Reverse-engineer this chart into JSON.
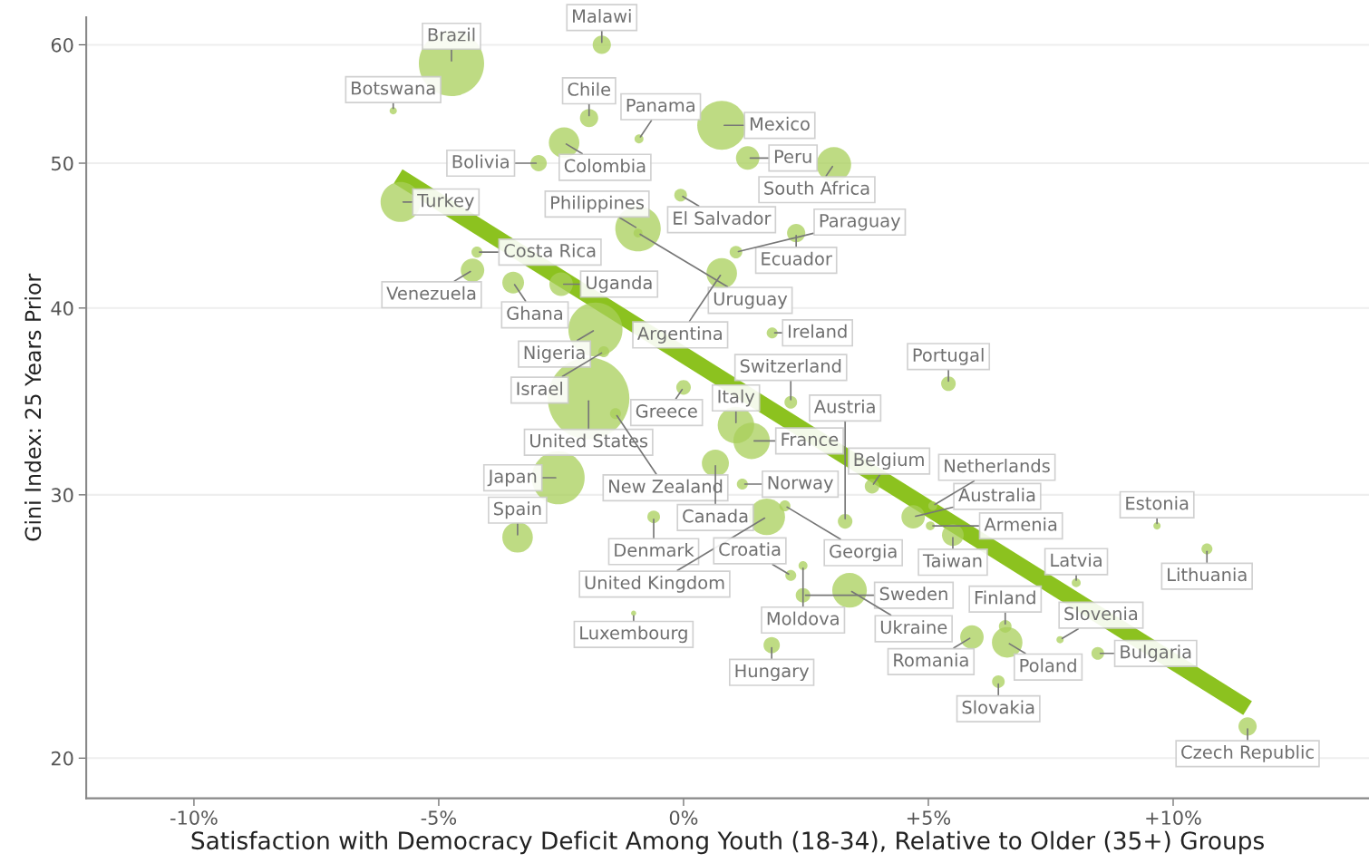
{
  "chart_data": {
    "type": "bubble",
    "xlabel": "Satisfaction with Democracy Deficit Among Youth (18-34), Relative to Older (35+) Groups",
    "ylabel": "Gini Index: 25 Years Prior",
    "log": "y",
    "grid": "y",
    "xlim": [
      -12.2,
      14
    ],
    "ylim": [
      18.8,
      62.6
    ],
    "xticks": [
      {
        "value": -10,
        "label": "-10%"
      },
      {
        "value": -5,
        "label": "-5%"
      },
      {
        "value": 0,
        "label": "0%"
      },
      {
        "value": 5,
        "label": "+5%"
      },
      {
        "value": 10,
        "label": "+10%"
      }
    ],
    "yticks": [
      20,
      30,
      40,
      50,
      60
    ],
    "series": [
      {
        "color": "#a8cf5a",
        "x": [
          -4.74,
          -1.67,
          -5.93,
          -1.93,
          -2.44,
          -0.91,
          -2.96,
          -5.78,
          -4.22,
          -4.31,
          -3.48,
          -0.93,
          -0.06,
          -2.5,
          -0.93,
          0.78,
          1.31,
          3.07,
          2.3,
          1.07,
          0.78,
          -1.8,
          -1.63,
          -1.94,
          -1.39,
          0.0,
          -2.56,
          -3.39,
          1.07,
          1.39,
          0.65,
          1.2,
          -0.61,
          1.7,
          2.07,
          3.85,
          -1.02,
          2.19,
          2.44,
          2.44,
          1.8,
          1.81,
          2.19,
          5.41,
          4.69,
          5.09,
          5.04,
          3.3,
          5.5,
          8.02,
          3.39,
          9.67,
          10.69,
          5.89,
          6.61,
          6.57,
          6.43,
          7.69,
          8.46,
          11.52
        ],
        "values": [
          58.3,
          60.0,
          54.2,
          53.6,
          51.6,
          51.9,
          50.0,
          47.1,
          43.6,
          42.4,
          41.6,
          45.2,
          47.6,
          41.5,
          44.9,
          53.0,
          50.4,
          49.9,
          44.9,
          43.6,
          42.2,
          38.7,
          37.4,
          34.8,
          34.0,
          35.4,
          30.8,
          28.1,
          33.4,
          32.6,
          31.5,
          30.5,
          29.0,
          29.0,
          29.5,
          30.4,
          25.0,
          26.5,
          26.9,
          25.7,
          23.8,
          38.5,
          34.6,
          35.6,
          29.0,
          29.5,
          28.6,
          28.8,
          28.2,
          26.2,
          25.9,
          28.6,
          27.6,
          24.1,
          23.9,
          24.5,
          22.5,
          24.0,
          23.5,
          21.0
        ],
        "sizes": [
          0.64,
          0.05,
          0.008,
          0.05,
          0.14,
          0.012,
          0.04,
          0.24,
          0.018,
          0.083,
          0.071,
          0.31,
          0.024,
          0.083,
          0.012,
          0.36,
          0.083,
          0.18,
          0.05,
          0.024,
          0.14,
          0.44,
          0.018,
          1,
          0.018,
          0.032,
          0.42,
          0.14,
          0.2,
          0.2,
          0.11,
          0.018,
          0.024,
          0.2,
          0.018,
          0.032,
          0.004,
          0.018,
          0.012,
          0.032,
          0.04,
          0.018,
          0.024,
          0.032,
          0.083,
          0.012,
          0.012,
          0.032,
          0.071,
          0.012,
          0.18,
          0.008,
          0.018,
          0.083,
          0.14,
          0.024,
          0.024,
          0.008,
          0.024,
          0.05
        ]
      },
      {
        "type": "line",
        "color": "#8cc21f",
        "x": [
          -5.83,
          11.52
        ],
        "values": [
          49.0,
          21.6
        ]
      }
    ],
    "annotations": [
      {
        "text": "Brazil",
        "x": -4.74,
        "y": 58.3
      },
      {
        "text": "Malawi",
        "x": -1.67,
        "y": 60.0
      },
      {
        "text": "Botswana",
        "x": -5.93,
        "y": 54.2
      },
      {
        "text": "Chile",
        "x": -1.93,
        "y": 53.6
      },
      {
        "text": "Colombia",
        "x": -2.44,
        "y": 51.6
      },
      {
        "text": "Panama",
        "x": -0.91,
        "y": 51.9
      },
      {
        "text": "Bolivia",
        "x": -2.96,
        "y": 50.0
      },
      {
        "text": "Turkey",
        "x": -5.78,
        "y": 47.1
      },
      {
        "text": "Costa Rica",
        "x": -4.22,
        "y": 43.6
      },
      {
        "text": "Venezuela",
        "x": -4.31,
        "y": 42.4
      },
      {
        "text": "Ghana",
        "x": -3.48,
        "y": 41.6
      },
      {
        "text": "Philippines",
        "x": -0.93,
        "y": 45.2
      },
      {
        "text": "El Salvador",
        "x": -0.06,
        "y": 47.6
      },
      {
        "text": "Uganda",
        "x": -2.5,
        "y": 41.5
      },
      {
        "text": "Uruguay",
        "x": -0.93,
        "y": 44.9
      },
      {
        "text": "Mexico",
        "x": 0.78,
        "y": 53.0
      },
      {
        "text": "Peru",
        "x": 1.31,
        "y": 50.4
      },
      {
        "text": "South Africa",
        "x": 3.07,
        "y": 49.9
      },
      {
        "text": "Ecuador",
        "x": 2.3,
        "y": 44.9
      },
      {
        "text": "Paraguay",
        "x": 1.07,
        "y": 43.6
      },
      {
        "text": "Argentina",
        "x": 0.78,
        "y": 42.2
      },
      {
        "text": "Nigeria",
        "x": -1.8,
        "y": 38.7
      },
      {
        "text": "Israel",
        "x": -1.63,
        "y": 37.4
      },
      {
        "text": "United States",
        "x": -1.94,
        "y": 34.8
      },
      {
        "text": "New Zealand",
        "x": -1.39,
        "y": 34.0
      },
      {
        "text": "Greece",
        "x": 0.0,
        "y": 35.4
      },
      {
        "text": "Japan",
        "x": -2.56,
        "y": 30.8
      },
      {
        "text": "Spain",
        "x": -3.39,
        "y": 28.1
      },
      {
        "text": "Italy",
        "x": 1.07,
        "y": 33.4
      },
      {
        "text": "France",
        "x": 1.39,
        "y": 32.6
      },
      {
        "text": "Canada",
        "x": 0.65,
        "y": 31.5
      },
      {
        "text": "Norway",
        "x": 1.2,
        "y": 30.5
      },
      {
        "text": "Denmark",
        "x": -0.61,
        "y": 29.0
      },
      {
        "text": "United Kingdom",
        "x": 1.7,
        "y": 29.0
      },
      {
        "text": "Georgia",
        "x": 2.07,
        "y": 29.5
      },
      {
        "text": "Belgium",
        "x": 3.85,
        "y": 30.4
      },
      {
        "text": "Luxembourg",
        "x": -1.02,
        "y": 25.0
      },
      {
        "text": "Croatia",
        "x": 2.19,
        "y": 26.5
      },
      {
        "text": "Moldova",
        "x": 2.44,
        "y": 26.9
      },
      {
        "text": "Sweden",
        "x": 2.44,
        "y": 25.7
      },
      {
        "text": "Hungary",
        "x": 1.8,
        "y": 23.8
      },
      {
        "text": "Ireland",
        "x": 1.81,
        "y": 38.5
      },
      {
        "text": "Switzerland",
        "x": 2.19,
        "y": 34.6
      },
      {
        "text": "Portugal",
        "x": 5.41,
        "y": 35.6
      },
      {
        "text": "Australia",
        "x": 4.69,
        "y": 29.0
      },
      {
        "text": "Netherlands",
        "x": 5.09,
        "y": 29.5
      },
      {
        "text": "Armenia",
        "x": 5.04,
        "y": 28.6
      },
      {
        "text": "Austria",
        "x": 3.3,
        "y": 28.8
      },
      {
        "text": "Taiwan",
        "x": 5.5,
        "y": 28.2
      },
      {
        "text": "Latvia",
        "x": 8.02,
        "y": 26.2
      },
      {
        "text": "Ukraine",
        "x": 3.39,
        "y": 25.9
      },
      {
        "text": "Estonia",
        "x": 9.67,
        "y": 28.6
      },
      {
        "text": "Lithuania",
        "x": 10.69,
        "y": 27.6
      },
      {
        "text": "Romania",
        "x": 5.89,
        "y": 24.1
      },
      {
        "text": "Poland",
        "x": 6.61,
        "y": 23.9
      },
      {
        "text": "Finland",
        "x": 6.57,
        "y": 24.5
      },
      {
        "text": "Slovakia",
        "x": 6.43,
        "y": 22.5
      },
      {
        "text": "Slovenia",
        "x": 7.69,
        "y": 24.0
      },
      {
        "text": "Bulgaria",
        "x": 8.46,
        "y": 23.5
      },
      {
        "text": "Czech Republic",
        "x": 11.52,
        "y": 21.0
      }
    ]
  }
}
